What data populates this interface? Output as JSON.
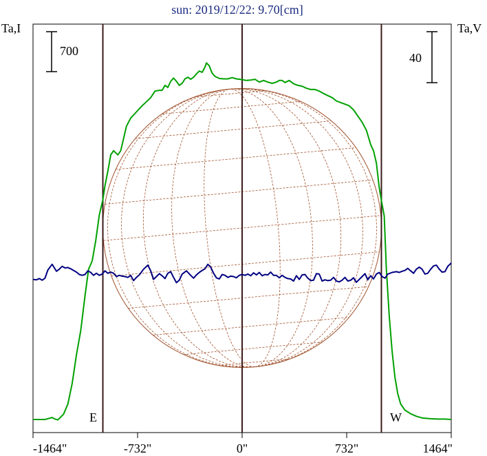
{
  "chart_data": {
    "type": "line",
    "title": "sun: 2019/12/22: 9.70[cm]",
    "left_axis_label": "Ta,I",
    "right_axis_label": "Ta,V",
    "left_scale_label": "700",
    "right_scale_label": "40",
    "xlim": [
      -1464,
      1464
    ],
    "x_ticks": [
      {
        "value": -1464,
        "label": "-1464\""
      },
      {
        "value": -732,
        "label": "-732\""
      },
      {
        "value": 0,
        "label": "0\""
      },
      {
        "value": 732,
        "label": "732\""
      },
      {
        "value": 1464,
        "label": "1464\""
      }
    ],
    "vertical_lines": [
      -975,
      0,
      975
    ],
    "limb_markers": [
      {
        "label": "E",
        "x": -975
      },
      {
        "label": "W",
        "x": 975
      }
    ],
    "solar_disk": {
      "radius_arcsec": 975,
      "color": "#a0522d",
      "grid": true
    },
    "series": [
      {
        "color": "#00a000",
        "points": [
          [
            -1464,
            32
          ],
          [
            -1420,
            32
          ],
          [
            -1380,
            32
          ],
          [
            -1360,
            34
          ],
          [
            -1330,
            37
          ],
          [
            -1310,
            33
          ],
          [
            -1290,
            31
          ],
          [
            -1250,
            45
          ],
          [
            -1220,
            70
          ],
          [
            -1190,
            120
          ],
          [
            -1160,
            190
          ],
          [
            -1130,
            250
          ],
          [
            -1100,
            335
          ],
          [
            -1075,
            400
          ],
          [
            -1050,
            420
          ],
          [
            -1025,
            470
          ],
          [
            -1000,
            532
          ],
          [
            -975,
            570
          ],
          [
            -960,
            605
          ],
          [
            -940,
            640
          ],
          [
            -920,
            680
          ],
          [
            -900,
            690
          ],
          [
            -870,
            680
          ],
          [
            -850,
            690
          ],
          [
            -830,
            720
          ],
          [
            -810,
            750
          ],
          [
            -780,
            770
          ],
          [
            -740,
            785
          ],
          [
            -700,
            800
          ],
          [
            -670,
            810
          ],
          [
            -640,
            820
          ],
          [
            -610,
            836
          ],
          [
            -580,
            838
          ],
          [
            -560,
            838
          ],
          [
            -540,
            850
          ],
          [
            -520,
            845
          ],
          [
            -500,
            860
          ],
          [
            -480,
            868
          ],
          [
            -460,
            860
          ],
          [
            -440,
            850
          ],
          [
            -420,
            855
          ],
          [
            -400,
            866
          ],
          [
            -380,
            870
          ],
          [
            -360,
            865
          ],
          [
            -340,
            870
          ],
          [
            -320,
            878
          ],
          [
            -300,
            885
          ],
          [
            -280,
            882
          ],
          [
            -260,
            895
          ],
          [
            -250,
            905
          ],
          [
            -230,
            898
          ],
          [
            -210,
            880
          ],
          [
            -190,
            872
          ],
          [
            -160,
            867
          ],
          [
            -130,
            866
          ],
          [
            -100,
            866
          ],
          [
            -70,
            869
          ],
          [
            -40,
            866
          ],
          [
            0,
            864
          ],
          [
            30,
            862
          ],
          [
            60,
            863
          ],
          [
            90,
            865
          ],
          [
            120,
            858
          ],
          [
            150,
            862
          ],
          [
            180,
            858
          ],
          [
            210,
            855
          ],
          [
            240,
            858
          ],
          [
            260,
            862
          ],
          [
            280,
            862
          ],
          [
            300,
            857
          ],
          [
            330,
            862
          ],
          [
            360,
            854
          ],
          [
            390,
            850
          ],
          [
            420,
            848
          ],
          [
            450,
            843
          ],
          [
            480,
            840
          ],
          [
            510,
            840
          ],
          [
            540,
            836
          ],
          [
            570,
            830
          ],
          [
            600,
            825
          ],
          [
            630,
            820
          ],
          [
            660,
            812
          ],
          [
            690,
            808
          ],
          [
            720,
            804
          ],
          [
            750,
            800
          ],
          [
            780,
            790
          ],
          [
            810,
            775
          ],
          [
            840,
            760
          ],
          [
            870,
            740
          ],
          [
            900,
            705
          ],
          [
            920,
            690
          ],
          [
            940,
            660
          ],
          [
            960,
            600
          ],
          [
            975,
            568
          ],
          [
            995,
            530
          ],
          [
            1010,
            400
          ],
          [
            1030,
            285
          ],
          [
            1050,
            200
          ],
          [
            1070,
            135
          ],
          [
            1090,
            95
          ],
          [
            1110,
            70
          ],
          [
            1140,
            55
          ],
          [
            1180,
            46
          ],
          [
            1220,
            40
          ],
          [
            1260,
            36
          ],
          [
            1310,
            34
          ],
          [
            1370,
            33
          ],
          [
            1420,
            33
          ],
          [
            1464,
            32
          ]
        ]
      },
      {
        "color": "#000080",
        "points": [
          [
            -1464,
            375
          ],
          [
            -1440,
            374
          ],
          [
            -1420,
            377
          ],
          [
            -1400,
            373
          ],
          [
            -1380,
            378
          ],
          [
            -1360,
            398
          ],
          [
            -1330,
            412
          ],
          [
            -1300,
            395
          ],
          [
            -1280,
            400
          ],
          [
            -1260,
            407
          ],
          [
            -1240,
            403
          ],
          [
            -1220,
            404
          ],
          [
            -1200,
            401
          ],
          [
            -1180,
            397
          ],
          [
            -1160,
            393
          ],
          [
            -1140,
            387
          ],
          [
            -1120,
            385
          ],
          [
            -1100,
            387
          ],
          [
            -1080,
            396
          ],
          [
            -1060,
            392
          ],
          [
            -1040,
            385
          ],
          [
            -1020,
            390
          ],
          [
            -1000,
            385
          ],
          [
            -980,
            388
          ],
          [
            -960,
            396
          ],
          [
            -940,
            390
          ],
          [
            -920,
            393
          ],
          [
            -900,
            390
          ],
          [
            -880,
            382
          ],
          [
            -860,
            385
          ],
          [
            -840,
            383
          ],
          [
            -820,
            382
          ],
          [
            -800,
            380
          ],
          [
            -780,
            385
          ],
          [
            -760,
            372
          ],
          [
            -740,
            380
          ],
          [
            -720,
            386
          ],
          [
            -690,
            400
          ],
          [
            -660,
            410
          ],
          [
            -640,
            396
          ],
          [
            -620,
            375
          ],
          [
            -600,
            382
          ],
          [
            -580,
            389
          ],
          [
            -560,
            384
          ],
          [
            -540,
            377
          ],
          [
            -520,
            390
          ],
          [
            -500,
            394
          ],
          [
            -480,
            380
          ],
          [
            -460,
            367
          ],
          [
            -440,
            373
          ],
          [
            -420,
            388
          ],
          [
            -390,
            396
          ],
          [
            -360,
            385
          ],
          [
            -340,
            378
          ],
          [
            -320,
            386
          ],
          [
            -300,
            392
          ],
          [
            -280,
            397
          ],
          [
            -260,
            401
          ],
          [
            -240,
            412
          ],
          [
            -220,
            405
          ],
          [
            -200,
            390
          ],
          [
            -180,
            379
          ],
          [
            -160,
            376
          ],
          [
            -140,
            387
          ],
          [
            -120,
            385
          ],
          [
            -100,
            380
          ],
          [
            -80,
            383
          ],
          [
            -60,
            382
          ],
          [
            -40,
            379
          ],
          [
            -20,
            385
          ],
          [
            0,
            387
          ],
          [
            20,
            385
          ],
          [
            40,
            388
          ],
          [
            60,
            384
          ],
          [
            80,
            391
          ],
          [
            100,
            386
          ],
          [
            120,
            392
          ],
          [
            140,
            384
          ],
          [
            160,
            387
          ],
          [
            180,
            386
          ],
          [
            200,
            393
          ],
          [
            220,
            385
          ],
          [
            240,
            385
          ],
          [
            260,
            379
          ],
          [
            280,
            385
          ],
          [
            300,
            380
          ],
          [
            320,
            377
          ],
          [
            340,
            376
          ],
          [
            360,
            371
          ],
          [
            380,
            384
          ],
          [
            400,
            375
          ],
          [
            420,
            386
          ],
          [
            440,
            387
          ],
          [
            460,
            378
          ],
          [
            480,
            372
          ],
          [
            500,
            373
          ],
          [
            520,
            389
          ],
          [
            540,
            388
          ],
          [
            560,
            371
          ],
          [
            580,
            374
          ],
          [
            600,
            372
          ],
          [
            620,
            373
          ],
          [
            640,
            380
          ],
          [
            660,
            371
          ],
          [
            680,
            369
          ],
          [
            700,
            373
          ],
          [
            720,
            380
          ],
          [
            740,
            371
          ],
          [
            760,
            373
          ],
          [
            780,
            379
          ],
          [
            800,
            368
          ],
          [
            820,
            375
          ],
          [
            840,
            382
          ],
          [
            860,
            389
          ],
          [
            880,
            374
          ],
          [
            900,
            384
          ],
          [
            920,
            376
          ],
          [
            940,
            388
          ],
          [
            960,
            392
          ],
          [
            980,
            382
          ],
          [
            1000,
            378
          ],
          [
            1020,
            388
          ],
          [
            1050,
            392
          ],
          [
            1080,
            394
          ],
          [
            1100,
            392
          ],
          [
            1120,
            395
          ],
          [
            1140,
            397
          ],
          [
            1160,
            402
          ],
          [
            1180,
            396
          ],
          [
            1200,
            390
          ],
          [
            1220,
            400
          ],
          [
            1240,
            405
          ],
          [
            1260,
            400
          ],
          [
            1280,
            388
          ],
          [
            1300,
            390
          ],
          [
            1320,
            400
          ],
          [
            1340,
            408
          ],
          [
            1360,
            410
          ],
          [
            1380,
            400
          ],
          [
            1400,
            393
          ],
          [
            1420,
            394
          ],
          [
            1440,
            407
          ],
          [
            1464,
            415
          ]
        ]
      }
    ],
    "y_units_note": "",
    "ylim": [
      0,
      1000
    ]
  }
}
